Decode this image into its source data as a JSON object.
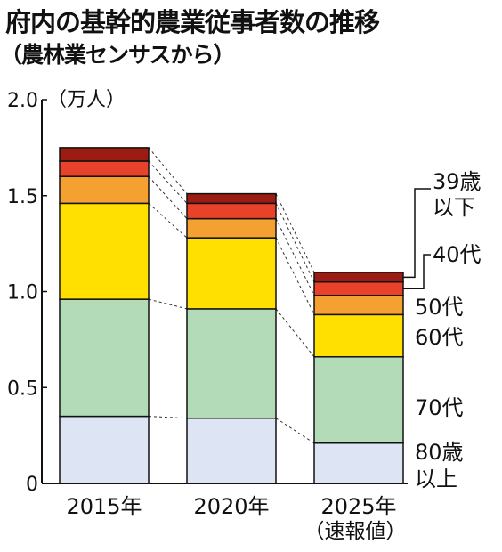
{
  "chart_data": {
    "type": "bar",
    "stacked": true,
    "title": "府内の基幹的農業従事者数の推移",
    "subtitle": "（農林業センサスから）",
    "unit_label": "（万人）",
    "ylim": [
      0,
      2.0
    ],
    "yticks": [
      "0",
      "0.5",
      "1.0",
      "1.5",
      "2.0"
    ],
    "ytick_values": [
      0,
      0.5,
      1.0,
      1.5,
      2.0
    ],
    "categories": [
      "2015年",
      "2020年",
      "2025年"
    ],
    "category_note": [
      "",
      "",
      "（速報値）"
    ],
    "series": [
      {
        "name": "80歳以上",
        "label_lines": [
          "80歳",
          "以上"
        ],
        "color": "#dde5f4",
        "values": [
          0.35,
          0.34,
          0.21
        ]
      },
      {
        "name": "70代",
        "label_lines": [
          "70代"
        ],
        "color": "#b3dbb8",
        "values": [
          0.61,
          0.57,
          0.45
        ]
      },
      {
        "name": "60代",
        "label_lines": [
          "60代"
        ],
        "color": "#ffe000",
        "values": [
          0.5,
          0.37,
          0.22
        ]
      },
      {
        "name": "50代",
        "label_lines": [
          "50代"
        ],
        "color": "#f5a132",
        "values": [
          0.14,
          0.1,
          0.1
        ]
      },
      {
        "name": "40代",
        "label_lines": [
          "40代"
        ],
        "color": "#e8422b",
        "values": [
          0.08,
          0.08,
          0.07
        ]
      },
      {
        "name": "39歳以下",
        "label_lines": [
          "39歳",
          "以下"
        ],
        "color": "#9c1c14",
        "values": [
          0.07,
          0.05,
          0.05
        ]
      }
    ]
  }
}
